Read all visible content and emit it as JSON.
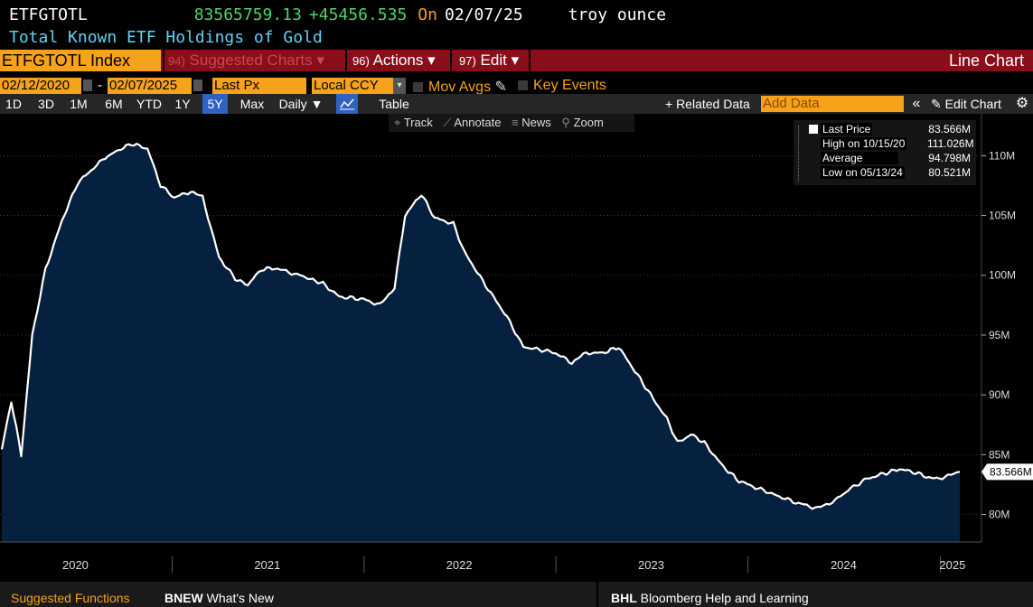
{
  "header": {
    "ticker": "ETFGTOTL",
    "price": "83565759.13",
    "change": "+45456.535",
    "on_label": "On",
    "date": "02/07/25",
    "unit": "troy ounce",
    "description": "Total Known ETF Holdings of Gold"
  },
  "menubar": {
    "index_label": "ETFGTOTL Index",
    "suggested_num": "94)",
    "suggested_label": "Suggested Charts",
    "actions_num": "96)",
    "actions_label": "Actions",
    "edit_num": "97)",
    "edit_label": "Edit",
    "chart_type": "Line Chart",
    "dropdown_glyph": "▾"
  },
  "controls": {
    "start_date": "02/12/2020",
    "end_date": "02/07/2025",
    "dash": "-",
    "field": "Last Px",
    "currency": "Local CCY",
    "mov_avgs": "Mov Avgs",
    "key_events": "Key Events"
  },
  "periods": [
    "1D",
    "3D",
    "1M",
    "6M",
    "YTD",
    "1Y",
    "5Y",
    "Max"
  ],
  "frequency": "Daily ▼",
  "table_label": "Table",
  "related_label": "+ Related Data",
  "add_data_placeholder": "Add Data",
  "collapse_glyph": "«",
  "edit_chart_label": "Edit Chart",
  "tools": {
    "track": "Track",
    "annotate": "Annotate",
    "news": "News",
    "zoom": "Zoom"
  },
  "legend": {
    "last_price_label": "Last Price",
    "last_price_value": "83.566M",
    "high_label": "High on 10/15/20",
    "high_value": "111.026M",
    "average_label": "Average",
    "average_value": "94.798M",
    "low_label": "Low on 05/13/24",
    "low_value": "80.521M"
  },
  "footer": {
    "suggested": "Suggested Functions",
    "bnew_code": "BNEW",
    "bnew_label": "What's New",
    "bhl_code": "BHL",
    "bhl_label": "Bloomberg Help and Learning"
  },
  "colors": {
    "area_fill": "#06203f",
    "line": "#ffffff",
    "accent": "#f7a21b",
    "header_green": "#4fd36a",
    "header_cyan": "#5fd3f3",
    "menu_red": "#8a0e1a"
  },
  "chart_data": {
    "type": "area",
    "title": "Total Known ETF Holdings of Gold",
    "xlabel": "",
    "ylabel": "",
    "x_ticks": [
      "2020",
      "2021",
      "2022",
      "2023",
      "2024",
      "2025"
    ],
    "y_ticks": [
      "80M",
      "85M",
      "90M",
      "95M",
      "100M",
      "105M",
      "110M"
    ],
    "y_tick_values": [
      80,
      85,
      90,
      95,
      100,
      105,
      110
    ],
    "ylim": [
      77.7,
      113.5
    ],
    "xlim": [
      "2020-02-12",
      "2025-02-07"
    ],
    "last_value_label": "83.566M",
    "grid": true,
    "legend_position": "top-right",
    "series": [
      {
        "values_unit": "M troy ounce",
        "points": [
          [
            "2020-02-12",
            85.5
          ],
          [
            "2020-03-01",
            89.5
          ],
          [
            "2020-03-20",
            85.0
          ],
          [
            "2020-04-10",
            95.0
          ],
          [
            "2020-05-05",
            100.5
          ],
          [
            "2020-06-05",
            104.5
          ],
          [
            "2020-07-05",
            107.7
          ],
          [
            "2020-08-05",
            109.0
          ],
          [
            "2020-09-01",
            110.0
          ],
          [
            "2020-10-15",
            111.0
          ],
          [
            "2020-11-15",
            110.6
          ],
          [
            "2020-12-10",
            107.5
          ],
          [
            "2021-01-05",
            106.5
          ],
          [
            "2021-02-05",
            107.0
          ],
          [
            "2021-02-28",
            106.5
          ],
          [
            "2021-03-31",
            101.5
          ],
          [
            "2021-05-01",
            99.7
          ],
          [
            "2021-05-25",
            99.2
          ],
          [
            "2021-06-20",
            100.5
          ],
          [
            "2021-07-15",
            100.6
          ],
          [
            "2021-09-01",
            100.0
          ],
          [
            "2021-10-15",
            99.3
          ],
          [
            "2021-11-15",
            98.2
          ],
          [
            "2021-12-31",
            98.0
          ],
          [
            "2022-01-31",
            97.5
          ],
          [
            "2022-02-28",
            99.0
          ],
          [
            "2022-03-20",
            105.0
          ],
          [
            "2022-04-20",
            106.8
          ],
          [
            "2022-05-15",
            104.8
          ],
          [
            "2022-06-20",
            104.3
          ],
          [
            "2022-07-10",
            102.0
          ],
          [
            "2022-08-15",
            99.5
          ],
          [
            "2022-09-30",
            96.5
          ],
          [
            "2022-10-31",
            94.0
          ],
          [
            "2022-11-30",
            93.8
          ],
          [
            "2022-12-31",
            93.5
          ],
          [
            "2023-01-31",
            92.7
          ],
          [
            "2023-02-28",
            93.5
          ],
          [
            "2023-03-31",
            93.5
          ],
          [
            "2023-04-30",
            94.0
          ],
          [
            "2023-05-31",
            92.0
          ],
          [
            "2023-06-30",
            90.0
          ],
          [
            "2023-07-31",
            88.0
          ],
          [
            "2023-08-20",
            86.0
          ],
          [
            "2023-09-15",
            86.7
          ],
          [
            "2023-10-10",
            86.0
          ],
          [
            "2023-11-15",
            84.0
          ],
          [
            "2023-12-15",
            82.8
          ],
          [
            "2024-01-31",
            82.0
          ],
          [
            "2024-03-01",
            81.5
          ],
          [
            "2024-04-01",
            81.0
          ],
          [
            "2024-05-13",
            80.5
          ],
          [
            "2024-06-15",
            81.2
          ],
          [
            "2024-07-15",
            82.2
          ],
          [
            "2024-08-15",
            83.0
          ],
          [
            "2024-09-15",
            83.4
          ],
          [
            "2024-10-15",
            83.8
          ],
          [
            "2024-11-15",
            83.5
          ],
          [
            "2024-12-15",
            83.0
          ],
          [
            "2025-01-10",
            83.1
          ],
          [
            "2025-02-07",
            83.566
          ]
        ]
      }
    ]
  }
}
